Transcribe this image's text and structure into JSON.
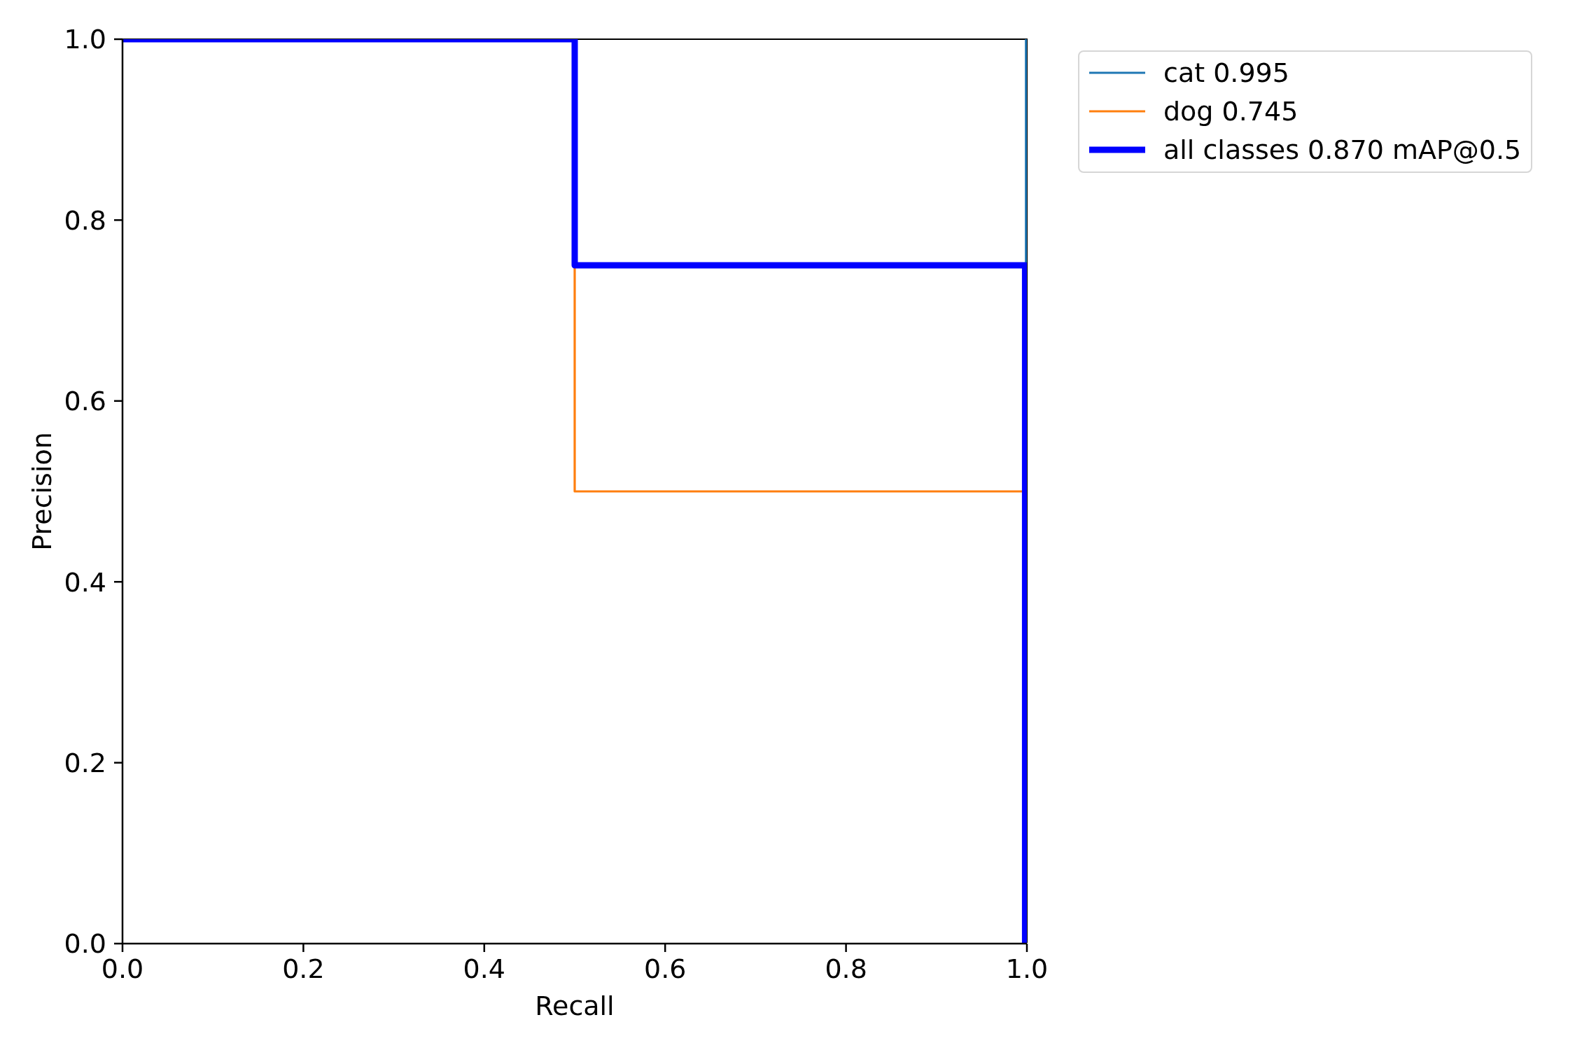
{
  "chart_data": {
    "type": "line",
    "xlabel": "Recall",
    "ylabel": "Precision",
    "xlim": [
      0,
      1
    ],
    "ylim": [
      0,
      1
    ],
    "xticks": [
      {
        "value": 0,
        "label": "0.0"
      },
      0.2,
      0.4,
      0.6,
      0.8,
      {
        "value": 1,
        "label": "1.0"
      }
    ],
    "yticks": [
      {
        "value": 0,
        "label": "0.0"
      },
      0.2,
      0.4,
      0.6,
      0.8,
      {
        "value": 1,
        "label": "1.0"
      }
    ],
    "series": [
      {
        "name": "cat 0.995",
        "color": "#1f77b4",
        "x": [
          0.999,
          0.999
        ],
        "values": [
          1,
          0.75
        ]
      },
      {
        "name": "dog 0.745",
        "color": "#ff7f0e",
        "x": [
          0.5,
          0.5,
          0.997
        ],
        "values": [
          0.75,
          0.5,
          0.5
        ]
      },
      {
        "name": "all classes 0.870 mAP@0.5",
        "color": "#0000ff",
        "x": [
          0,
          0.5,
          0.5,
          0.998,
          0.998
        ],
        "values": [
          1,
          1,
          0.75,
          0.75,
          0
        ]
      }
    ],
    "legend": "top right",
    "line_style": "solid"
  }
}
